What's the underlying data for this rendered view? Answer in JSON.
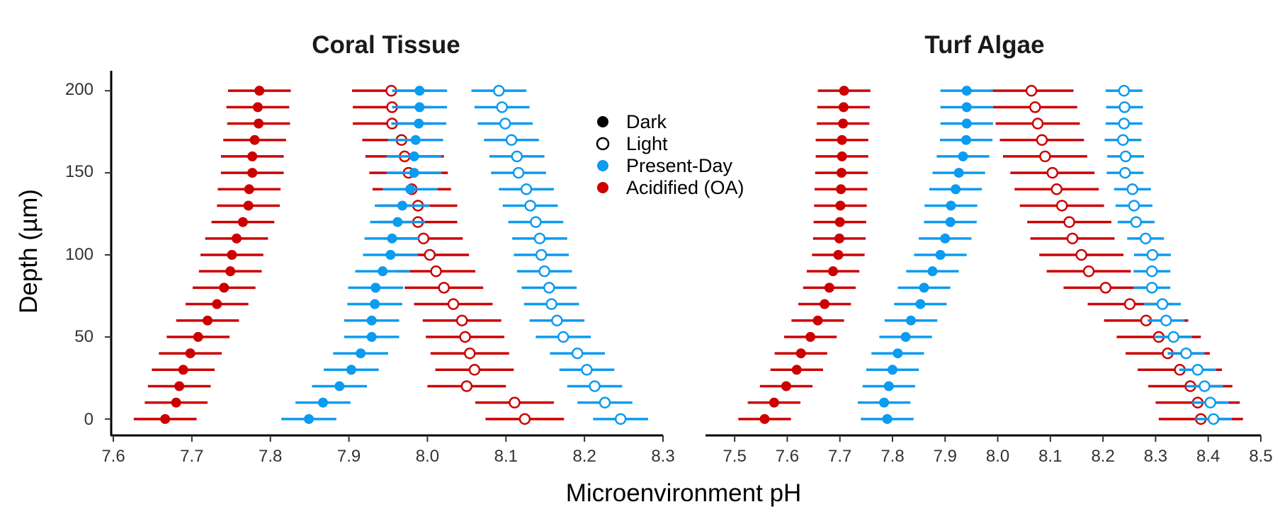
{
  "chart_data": {
    "type": "scatter",
    "x_label": "Microenvironment pH",
    "y_label": "Depth (µm)",
    "y_ticks": [
      "0",
      "50",
      "100",
      "150",
      "200"
    ],
    "ylim": [
      -10,
      210
    ],
    "legend": {
      "position": "center",
      "items": [
        {
          "label": "Dark",
          "marker": "filled",
          "color": "#000000"
        },
        {
          "label": "Light",
          "marker": "open",
          "color": "#000000"
        },
        {
          "label": "Present-Day",
          "marker": "filled",
          "color": "#0b9bf0"
        },
        {
          "label": "Acidified (OA)",
          "marker": "filled",
          "color": "#cc0000"
        }
      ]
    },
    "colors": {
      "present_day": "#0b9bf0",
      "acidified": "#cc0000"
    },
    "depths": [
      0,
      10,
      20,
      30,
      40,
      50,
      60,
      70,
      80,
      90,
      100,
      110,
      120,
      130,
      140,
      150,
      160,
      170,
      180,
      190,
      200
    ],
    "panels": [
      {
        "title": "Coral Tissue",
        "xlim": [
          7.6,
          8.3
        ],
        "x_ticks": [
          "7.6",
          "7.7",
          "7.8",
          "7.9",
          "8.0",
          "8.1",
          "8.2",
          "8.3"
        ],
        "series": [
          {
            "name": "Acidified (OA)",
            "light": "Dark",
            "color": "#cc0000",
            "filled": true,
            "error": 0.04,
            "values": [
              7.666,
              7.68,
              7.684,
              7.689,
              7.698,
              7.708,
              7.72,
              7.732,
              7.741,
              7.749,
              7.751,
              7.757,
              7.765,
              7.772,
              7.773,
              7.777,
              7.777,
              7.78,
              7.785,
              7.784,
              7.786
            ]
          },
          {
            "name": "Acidified (OA)",
            "light": "Light",
            "color": "#cc0000",
            "filled": false,
            "error": 0.05,
            "values": [
              8.124,
              8.111,
              8.05,
              8.06,
              8.054,
              8.048,
              8.044,
              8.033,
              8.021,
              8.011,
              8.003,
              7.995,
              7.988,
              7.988,
              7.98,
              7.976,
              7.971,
              7.967,
              7.955,
              7.955,
              7.954
            ]
          },
          {
            "name": "Present-Day",
            "light": "Dark",
            "color": "#0b9bf0",
            "filled": true,
            "error": 0.035,
            "values": [
              7.849,
              7.867,
              7.888,
              7.903,
              7.915,
              7.929,
              7.929,
              7.933,
              7.934,
              7.943,
              7.953,
              7.955,
              7.962,
              7.968,
              7.978,
              7.983,
              7.983,
              7.985,
              7.989,
              7.99,
              7.99
            ]
          },
          {
            "name": "Present-Day",
            "light": "Light",
            "color": "#0b9bf0",
            "filled": false,
            "error": 0.035,
            "values": [
              8.246,
              8.226,
              8.213,
              8.203,
              8.191,
              8.173,
              8.165,
              8.158,
              8.155,
              8.149,
              8.145,
              8.143,
              8.138,
              8.131,
              8.126,
              8.116,
              8.114,
              8.107,
              8.099,
              8.095,
              8.091
            ]
          }
        ]
      },
      {
        "title": "Turf Algae",
        "xlim": [
          7.45,
          8.5
        ],
        "x_ticks": [
          "7.5",
          "7.6",
          "7.7",
          "7.8",
          "7.9",
          "8.0",
          "8.1",
          "8.2",
          "8.3",
          "8.4",
          "8.5"
        ],
        "series": [
          {
            "name": "Acidified (OA)",
            "light": "Dark",
            "color": "#cc0000",
            "filled": true,
            "error": 0.05,
            "values": [
              7.557,
              7.575,
              7.598,
              7.618,
              7.626,
              7.644,
              7.658,
              7.671,
              7.68,
              7.687,
              7.697,
              7.699,
              7.7,
              7.701,
              7.702,
              7.703,
              7.704,
              7.704,
              7.706,
              7.707,
              7.708
            ]
          },
          {
            "name": "Acidified (OA)",
            "light": "Light",
            "color": "#cc0000",
            "filled": false,
            "error": 0.08,
            "values": [
              8.386,
              8.38,
              8.366,
              8.346,
              8.323,
              8.306,
              8.282,
              8.251,
              8.205,
              8.173,
              8.159,
              8.142,
              8.136,
              8.122,
              8.112,
              8.104,
              8.09,
              8.084,
              8.076,
              8.071,
              8.064
            ]
          },
          {
            "name": "Present-Day",
            "light": "Dark",
            "color": "#0b9bf0",
            "filled": true,
            "error": 0.05,
            "values": [
              7.79,
              7.784,
              7.793,
              7.8,
              7.81,
              7.825,
              7.835,
              7.853,
              7.86,
              7.876,
              7.891,
              7.9,
              7.91,
              7.911,
              7.92,
              7.926,
              7.934,
              7.94,
              7.941,
              7.941,
              7.941
            ]
          },
          {
            "name": "Present-Day",
            "light": "Light",
            "color": "#0b9bf0",
            "filled": false,
            "error": 0.035,
            "values": [
              8.41,
              8.404,
              8.393,
              8.38,
              8.358,
              8.334,
              8.32,
              8.313,
              8.293,
              8.293,
              8.294,
              8.281,
              8.263,
              8.259,
              8.256,
              8.242,
              8.243,
              8.238,
              8.24,
              8.241,
              8.24
            ]
          }
        ]
      }
    ]
  }
}
